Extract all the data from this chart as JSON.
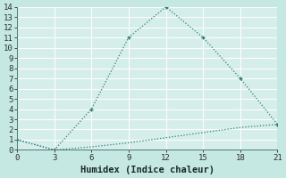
{
  "xlabel": "Humidex (Indice chaleur)",
  "line1_x": [
    0,
    3,
    6,
    9,
    12,
    15,
    18,
    21
  ],
  "line1_y": [
    1,
    0,
    4,
    11,
    14,
    11,
    7,
    2.5
  ],
  "line2_x": [
    0,
    3,
    6,
    9,
    12,
    15,
    18,
    21
  ],
  "line2_y": [
    1,
    0,
    0.3,
    0.7,
    1.2,
    1.7,
    2.2,
    2.5
  ],
  "line_color": "#2d7d74",
  "fig_bg_color": "#c5e8e3",
  "plot_bg_color": "#d6eeea",
  "grid_color": "#b0d8d3",
  "xlim": [
    0,
    21
  ],
  "ylim": [
    0,
    14
  ],
  "xticks": [
    0,
    3,
    6,
    9,
    12,
    15,
    18,
    21
  ],
  "yticks": [
    0,
    1,
    2,
    3,
    4,
    5,
    6,
    7,
    8,
    9,
    10,
    11,
    12,
    13,
    14
  ],
  "tick_fontsize": 6.5,
  "xlabel_fontsize": 7.5,
  "marker_size": 3.5,
  "linewidth": 0.9
}
